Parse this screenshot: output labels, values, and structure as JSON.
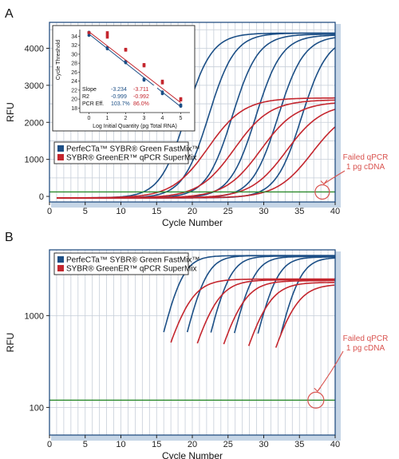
{
  "colors": {
    "series1": "#1c4f86",
    "series2": "#c4262e",
    "threshold": "#2e8b2e",
    "grid": "#c6ced8",
    "frame": "#16447a",
    "shadow": "#9fb9d6",
    "annotation": "#d9534f"
  },
  "chart_data": [
    {
      "panel": "A",
      "type": "line",
      "xlabel": "Cycle Number",
      "ylabel": "RFU",
      "xlim": [
        0,
        40
      ],
      "ylim": [
        -150,
        4700
      ],
      "xticks": [
        "0",
        "5",
        "10",
        "15",
        "20",
        "25",
        "30",
        "35",
        "40"
      ],
      "yticks": [
        "0",
        "1000",
        "2000",
        "3000",
        "4000"
      ],
      "grid": true,
      "threshold": 120,
      "legend": {
        "position": "middle-left",
        "entries": [
          "PerfeCTa™ SYBR® Green FastMix™",
          "SYBR® GreenER™ qPCR SuperMix"
        ]
      },
      "annotation": {
        "lines": [
          "Failed qPCR",
          "1 pg cDNA"
        ],
        "target": {
          "x": 38.2,
          "y": 120
        }
      },
      "series": [
        {
          "name": "PerfeCTa™ SYBR® Green FastMix™",
          "curves": [
            {
              "ct": 19.1,
              "plateau": 4450,
              "slope": 0.55
            },
            {
              "ct": 22.3,
              "plateau": 4450,
              "slope": 0.55
            },
            {
              "ct": 25.6,
              "plateau": 4420,
              "slope": 0.55
            },
            {
              "ct": 28.9,
              "plateau": 4400,
              "slope": 0.55
            },
            {
              "ct": 32.0,
              "plateau": 4380,
              "slope": 0.55
            },
            {
              "ct": 35.3,
              "plateau": 4360,
              "slope": 0.55
            }
          ]
        },
        {
          "name": "SYBR® GreenER™ qPCR SuperMix",
          "curves": [
            {
              "ct": 22.2,
              "plateau": 2700,
              "slope": 0.4
            },
            {
              "ct": 25.9,
              "plateau": 2650,
              "slope": 0.4
            },
            {
              "ct": 29.6,
              "plateau": 2600,
              "slope": 0.4
            },
            {
              "ct": 33.2,
              "plateau": 2550,
              "slope": 0.4
            },
            {
              "ct": 36.8,
              "plateau": 2450,
              "slope": 0.4
            }
          ]
        }
      ],
      "inset": {
        "type": "scatter",
        "xlabel": "Log Initial Quantity (pg Total RNA)",
        "ylabel": "Cycle Threshold",
        "xlim": [
          -0.5,
          5.5
        ],
        "ylim": [
          17,
          35.5
        ],
        "xticks": [
          "0",
          "1",
          "2",
          "3",
          "4",
          "5"
        ],
        "yticks": [
          "18",
          "20",
          "22",
          "24",
          "26",
          "28",
          "30",
          "32",
          "34"
        ],
        "series": [
          {
            "name": "PerfeCTa™ SYBR® Green FastMix™",
            "points": [
              [
                0,
                34.2
              ],
              [
                0,
                34.7
              ],
              [
                0,
                34.9
              ],
              [
                1,
                31.2
              ],
              [
                1,
                31.5
              ],
              [
                2,
                28.1
              ],
              [
                2,
                28.4
              ],
              [
                3,
                24.2
              ],
              [
                3,
                24.5
              ],
              [
                4,
                21.2
              ],
              [
                4,
                21.6
              ],
              [
                5,
                18.4
              ],
              [
                5,
                18.7
              ]
            ],
            "fit": [
              [
                0,
                34.5
              ],
              [
                5,
                18.3
              ]
            ]
          },
          {
            "name": "SYBR® GreenER™ qPCR SuperMix",
            "points": [
              [
                0,
                34.8
              ],
              [
                1,
                33.8
              ],
              [
                1,
                34.3
              ],
              [
                1,
                34.8
              ],
              [
                2,
                30.9
              ],
              [
                2,
                31.1
              ],
              [
                3,
                27.4
              ],
              [
                3,
                27.7
              ],
              [
                4,
                23.6
              ],
              [
                4,
                24.0
              ],
              [
                5,
                19.8
              ],
              [
                5,
                20.1
              ]
            ],
            "fit": [
              [
                0,
                35.0
              ],
              [
                5,
                19.2
              ]
            ]
          }
        ],
        "stats": {
          "rows": [
            {
              "label": "Slope",
              "s1": "-3.234",
              "s2": "-3.711"
            },
            {
              "label": "R2",
              "s1": "-0.999",
              "s2": "-0.992"
            },
            {
              "label": "PCR Eff.",
              "s1": "103.7%",
              "s2": "86.0%"
            }
          ]
        }
      }
    },
    {
      "panel": "B",
      "type": "line",
      "xlabel": "Cycle Number",
      "ylabel": "RFU",
      "xlim": [
        0,
        40
      ],
      "ylim": [
        50,
        5200
      ],
      "yscale": "log",
      "xticks": [
        "0",
        "5",
        "10",
        "15",
        "20",
        "25",
        "30",
        "35",
        "40"
      ],
      "yticks": [
        "100",
        "1000"
      ],
      "grid": true,
      "threshold": 120,
      "legend": {
        "position": "top-left",
        "entries": [
          "PerfeCTa™ SYBR® Green FastMix™",
          "SYBR® GreenER™ qPCR SuperMix"
        ]
      },
      "annotation": {
        "lines": [
          "Failed qPCR",
          "1 pg cDNA"
        ],
        "target": {
          "x": 37.3,
          "y": 120
        }
      },
      "series": [
        {
          "name": "PerfeCTa™ SYBR® Green FastMix™",
          "curves": [
            {
              "ct": 18.2,
              "plateau": 4500,
              "slope": 0.8
            },
            {
              "ct": 21.5,
              "plateau": 4500,
              "slope": 0.8
            },
            {
              "ct": 24.8,
              "plateau": 4450,
              "slope": 0.8
            },
            {
              "ct": 28.1,
              "plateau": 4400,
              "slope": 0.8
            },
            {
              "ct": 31.4,
              "plateau": 4350,
              "slope": 0.8
            },
            {
              "ct": 34.6,
              "plateau": 4300,
              "slope": 0.8
            }
          ]
        },
        {
          "name": "SYBR® GreenER™ qPCR SuperMix",
          "curves": [
            {
              "ct": 19.2,
              "plateau": 2500,
              "slope": 0.62
            },
            {
              "ct": 22.9,
              "plateau": 2450,
              "slope": 0.62
            },
            {
              "ct": 26.6,
              "plateau": 2400,
              "slope": 0.62
            },
            {
              "ct": 30.1,
              "plateau": 2300,
              "slope": 0.62
            },
            {
              "ct": 33.9,
              "plateau": 2200,
              "slope": 0.62
            }
          ]
        }
      ]
    }
  ]
}
